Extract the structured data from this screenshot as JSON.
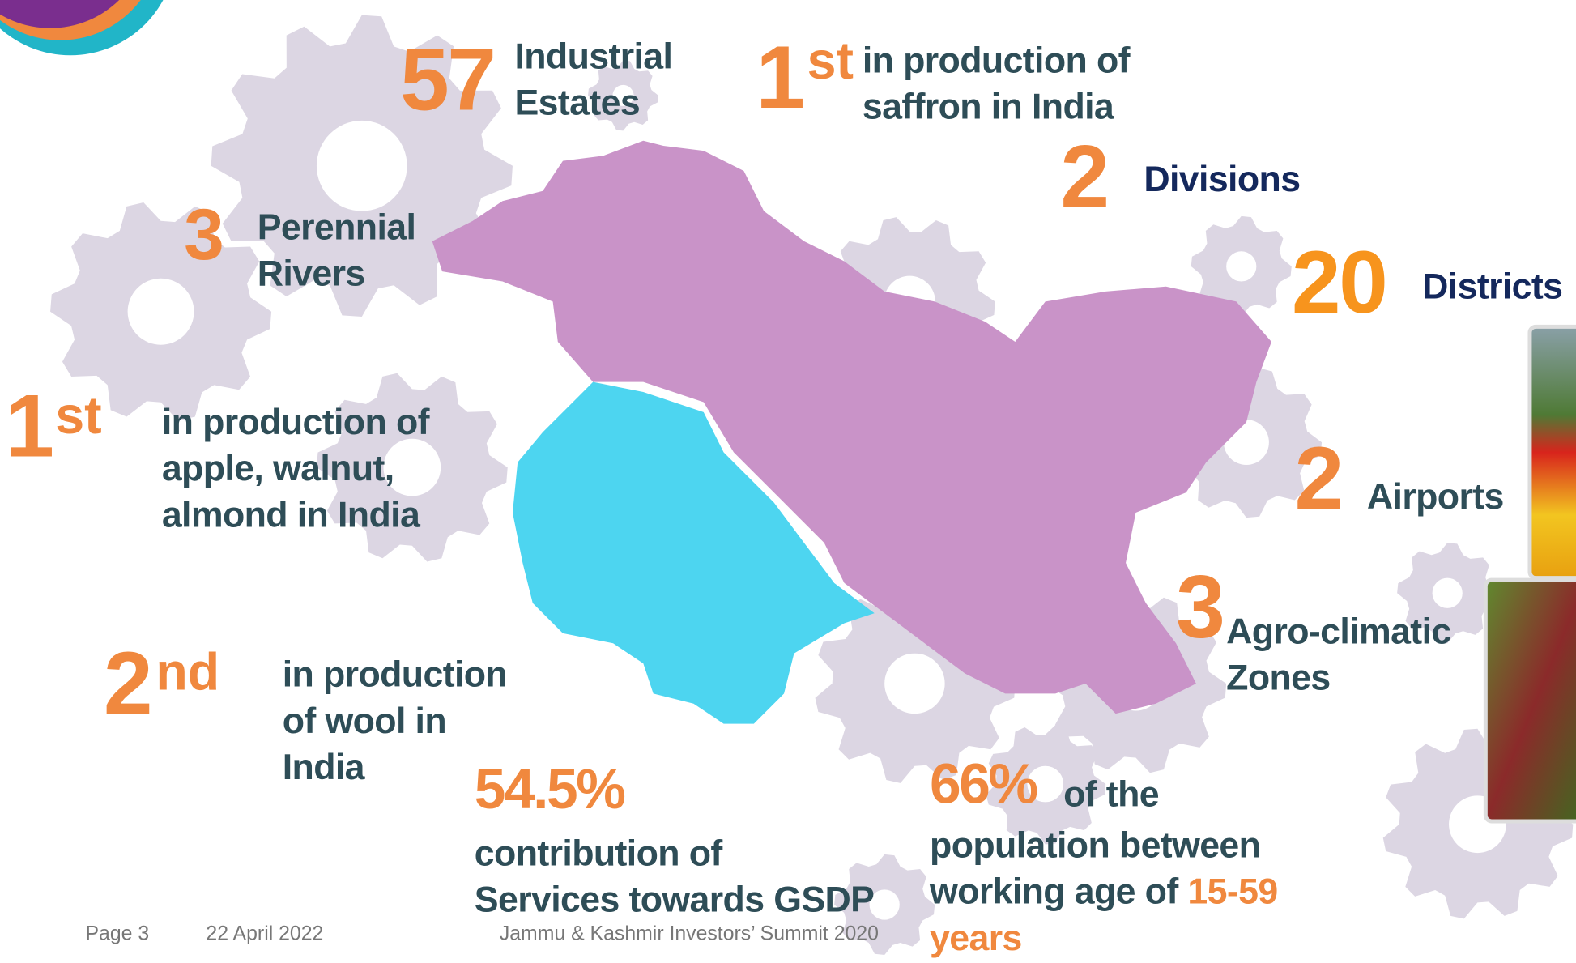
{
  "facts": [
    {
      "number": "57",
      "lines": [
        "Industrial",
        "Estates"
      ]
    },
    {
      "number": "1",
      "suffix": "st",
      "lines": [
        "in production of",
        "saffron in India"
      ]
    },
    {
      "number": "2",
      "lines": [
        "Divisions"
      ]
    },
    {
      "number": "3",
      "lines": [
        "Perennial",
        "Rivers"
      ]
    },
    {
      "number": "20",
      "lines": [
        "Districts"
      ]
    },
    {
      "number": "1",
      "suffix": "st",
      "lines": [
        "in production of",
        "apple, walnut,",
        "almond in India"
      ]
    },
    {
      "number": "2",
      "lines": [
        "Airports"
      ]
    },
    {
      "number": "3",
      "lines": [
        "Agro-climatic",
        "Zones"
      ]
    },
    {
      "number": "2",
      "suffix": "nd",
      "lines": [
        "in production",
        "of wool in",
        "India"
      ]
    },
    {
      "number": "54.5%",
      "lines": [
        "contribution of",
        "Services towards GSDP"
      ]
    },
    {
      "number": "66%",
      "lines": [
        "of the",
        "population between",
        "working age of"
      ],
      "highlight": [
        "15-59",
        "years"
      ]
    }
  ],
  "footer": {
    "page": "Page 3",
    "date": "22 April 2022",
    "event": "Jammu & Kashmir Investors’ Summit 2020"
  }
}
